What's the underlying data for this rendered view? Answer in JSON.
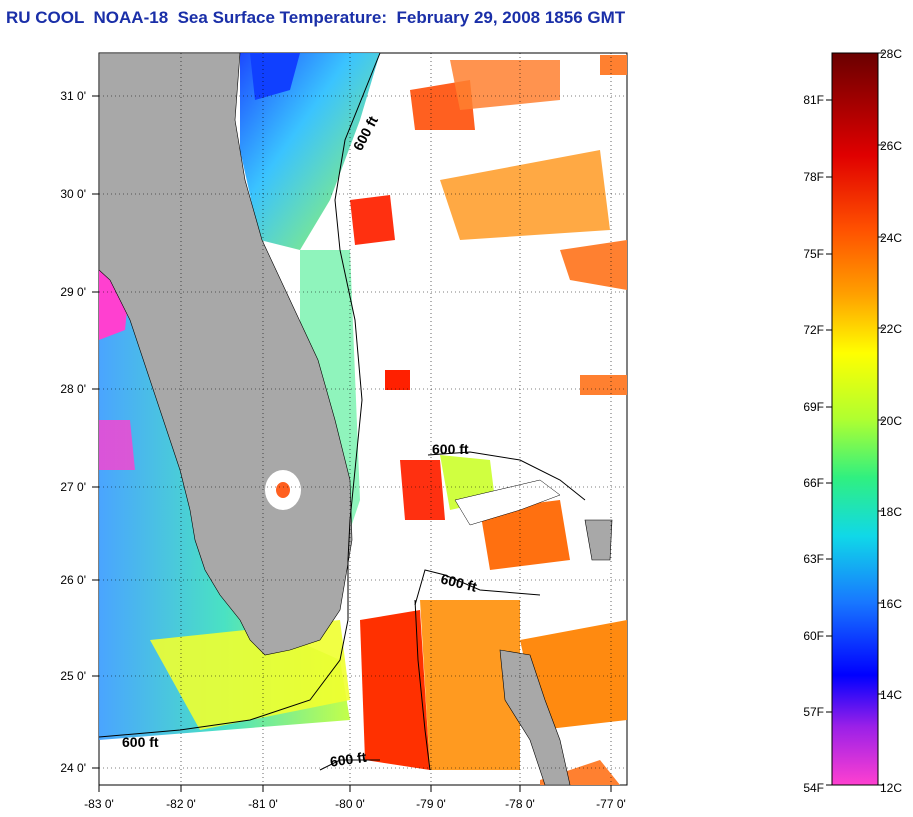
{
  "title": "RU COOL  NOAA-18  Sea Surface Temperature:  February 29, 2008 1856 GMT",
  "map": {
    "lat_ticks": [
      "31 0'",
      "30 0'",
      "29 0'",
      "28 0'",
      "27 0'",
      "26 0'",
      "25 0'",
      "24 0'"
    ],
    "lon_ticks": [
      "-83 0'",
      "-82 0'",
      "-81 0'",
      "-80 0'",
      "-79 0'",
      "-78 0'",
      "-77 0'"
    ],
    "contour_labels": [
      "600 ft",
      "600 ft",
      "600 ft",
      "600 ft",
      "600 ft"
    ],
    "land_color": "#a8a8a8"
  },
  "colorbar": {
    "fahrenheit_labels": [
      "81F",
      "78F",
      "75F",
      "72F",
      "69F",
      "66F",
      "63F",
      "60F",
      "57F",
      "54F"
    ],
    "celsius_labels": [
      "28C",
      "26C",
      "24C",
      "22C",
      "20C",
      "18C",
      "16C",
      "14C",
      "12C"
    ],
    "colors": [
      "#7a0000",
      "#e80000",
      "#ff5a00",
      "#ff9a00",
      "#ffe600",
      "#c8ff2a",
      "#38f070",
      "#18e0d8",
      "#1a78ff",
      "#0010ff",
      "#a020f0",
      "#ff40d0"
    ]
  }
}
